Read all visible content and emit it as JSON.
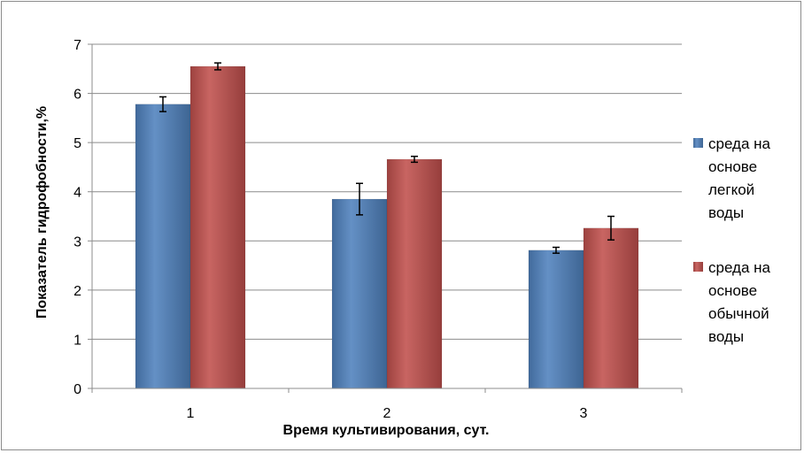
{
  "chart_data": {
    "type": "bar",
    "categories": [
      "1",
      "2",
      "3"
    ],
    "series": [
      {
        "name": "среда на основе легкой воды",
        "name_lines": [
          "среда на",
          "основе",
          "легкой",
          "воды"
        ],
        "values": [
          5.78,
          3.85,
          2.81
        ],
        "errors": [
          0.15,
          0.32,
          0.06
        ],
        "color": "#4f81bd"
      },
      {
        "name": "среда на основе обычной воды",
        "name_lines": [
          "среда на",
          "основе",
          "обычной",
          "воды"
        ],
        "values": [
          6.55,
          4.66,
          3.26
        ],
        "errors": [
          0.07,
          0.06,
          0.24
        ],
        "color": "#c0504d"
      }
    ],
    "title": "",
    "xlabel": "Время культивирования,  сут.",
    "ylabel": "Показатель гидрофобности,%",
    "ylim": [
      0,
      7
    ],
    "yticks": [
      "0",
      "1",
      "2",
      "3",
      "4",
      "5",
      "6",
      "7"
    ],
    "grid": true,
    "legend_position": "right"
  }
}
